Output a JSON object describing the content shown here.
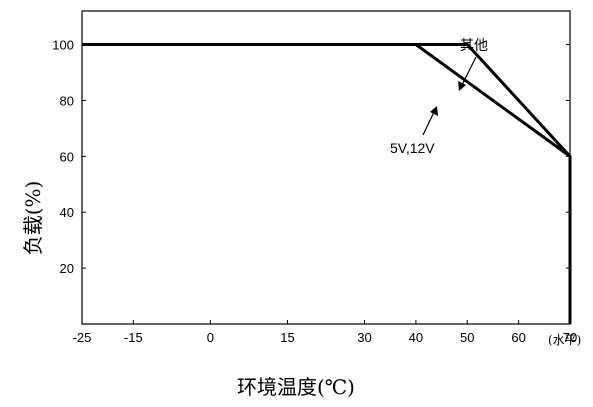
{
  "chart_data": {
    "type": "line",
    "xlabel": "环境温度(℃)",
    "ylabel": "负载(%)",
    "x_unit_note": "(水平)",
    "xlim": [
      -25,
      70
    ],
    "ylim": [
      0,
      112
    ],
    "x_ticks": [
      -25,
      -15,
      0,
      15,
      30,
      40,
      50,
      60,
      70
    ],
    "y_ticks": [
      20,
      40,
      60,
      80,
      100
    ],
    "grid": false,
    "series": [
      {
        "name": "其他",
        "points": [
          [
            -25,
            100
          ],
          [
            50,
            100
          ],
          [
            70,
            60
          ],
          [
            70,
            0
          ]
        ]
      },
      {
        "name": "5V,12V",
        "points": [
          [
            -25,
            100
          ],
          [
            40,
            100
          ],
          [
            70,
            60
          ],
          [
            70,
            0
          ]
        ]
      }
    ]
  }
}
